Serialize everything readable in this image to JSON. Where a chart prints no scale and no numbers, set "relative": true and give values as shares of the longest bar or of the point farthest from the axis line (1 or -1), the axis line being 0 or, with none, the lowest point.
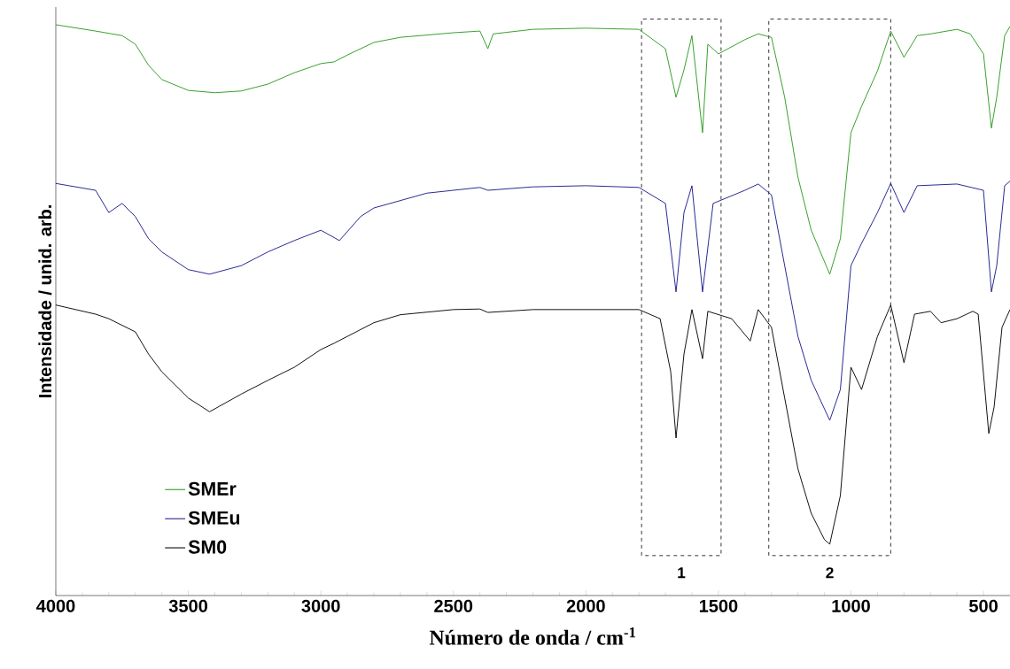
{
  "chart_data": {
    "type": "line",
    "relative": true,
    "xlabel": "Número de onda / cm$^{-1}$",
    "ylabel": "Intensidade / unid. arb.",
    "xlim": [
      4000,
      400
    ],
    "xticks": [
      4000,
      3500,
      3000,
      2500,
      2000,
      1500,
      1000,
      500
    ],
    "legend": "bottom left",
    "grid": false,
    "marker": "none",
    "line_style": "solid",
    "bands": [
      {
        "axis": "x",
        "from": 1790,
        "to": 1490,
        "label": "1"
      },
      {
        "axis": "x",
        "from": 1310,
        "to": 850,
        "label": "2"
      }
    ],
    "series": [
      {
        "name": "SMEr",
        "color": "#2a9a1e",
        "x": [
          4000,
          3850,
          3750,
          3700,
          3650,
          3600,
          3500,
          3400,
          3300,
          3200,
          3100,
          3000,
          2950,
          2900,
          2800,
          2700,
          2500,
          2400,
          2370,
          2350,
          2200,
          2000,
          1800,
          1700,
          1660,
          1630,
          1600,
          1560,
          1540,
          1500,
          1400,
          1350,
          1300,
          1250,
          1200,
          1150,
          1080,
          1040,
          1000,
          960,
          900,
          850,
          800,
          750,
          700,
          600,
          550,
          500,
          470,
          450,
          420,
          400
        ],
        "values": [
          1.0,
          0.989,
          0.981,
          0.966,
          0.929,
          0.904,
          0.885,
          0.881,
          0.884,
          0.896,
          0.916,
          0.932,
          0.935,
          0.947,
          0.969,
          0.978,
          0.986,
          0.989,
          0.958,
          0.984,
          0.992,
          0.994,
          0.992,
          0.958,
          0.873,
          0.921,
          0.981,
          0.811,
          0.966,
          0.949,
          0.974,
          0.984,
          0.978,
          0.873,
          0.733,
          0.64,
          0.563,
          0.625,
          0.811,
          0.857,
          0.919,
          0.989,
          0.943,
          0.981,
          0.984,
          0.992,
          0.984,
          0.949,
          0.819,
          0.873,
          0.981,
          0.997
        ]
      },
      {
        "name": "SMEu",
        "color": "#1a1a8c",
        "x": [
          4000,
          3850,
          3800,
          3750,
          3700,
          3650,
          3600,
          3500,
          3420,
          3300,
          3200,
          3100,
          3000,
          2930,
          2850,
          2800,
          2600,
          2400,
          2370,
          2200,
          2000,
          1800,
          1700,
          1660,
          1630,
          1600,
          1560,
          1520,
          1400,
          1350,
          1300,
          1250,
          1200,
          1150,
          1080,
          1040,
          1000,
          960,
          900,
          850,
          800,
          750,
          600,
          500,
          470,
          450,
          420,
          400
        ],
        "values": [
          0.722,
          0.71,
          0.671,
          0.687,
          0.664,
          0.625,
          0.602,
          0.571,
          0.563,
          0.578,
          0.602,
          0.622,
          0.64,
          0.622,
          0.664,
          0.679,
          0.705,
          0.715,
          0.71,
          0.716,
          0.718,
          0.715,
          0.687,
          0.532,
          0.671,
          0.718,
          0.532,
          0.687,
          0.71,
          0.721,
          0.702,
          0.578,
          0.454,
          0.377,
          0.307,
          0.361,
          0.578,
          0.617,
          0.671,
          0.722,
          0.671,
          0.718,
          0.721,
          0.71,
          0.532,
          0.578,
          0.718,
          0.726
        ]
      },
      {
        "name": "SM0",
        "color": "#000000",
        "x": [
          4000,
          3850,
          3800,
          3700,
          3650,
          3600,
          3500,
          3420,
          3300,
          3200,
          3100,
          3000,
          2950,
          2900,
          2800,
          2700,
          2500,
          2400,
          2370,
          2200,
          2000,
          1800,
          1720,
          1680,
          1660,
          1630,
          1600,
          1560,
          1540,
          1450,
          1380,
          1350,
          1300,
          1250,
          1200,
          1150,
          1100,
          1080,
          1040,
          1000,
          960,
          900,
          850,
          800,
          760,
          700,
          660,
          600,
          540,
          520,
          480,
          460,
          430,
          400
        ],
        "values": [
          0.509,
          0.493,
          0.485,
          0.462,
          0.423,
          0.392,
          0.346,
          0.322,
          0.353,
          0.377,
          0.4,
          0.431,
          0.442,
          0.454,
          0.478,
          0.492,
          0.501,
          0.502,
          0.496,
          0.501,
          0.501,
          0.501,
          0.485,
          0.392,
          0.276,
          0.423,
          0.501,
          0.415,
          0.498,
          0.485,
          0.446,
          0.501,
          0.47,
          0.346,
          0.222,
          0.144,
          0.098,
          0.09,
          0.175,
          0.4,
          0.361,
          0.454,
          0.509,
          0.408,
          0.493,
          0.498,
          0.478,
          0.485,
          0.498,
          0.493,
          0.284,
          0.33,
          0.47,
          0.501
        ]
      }
    ]
  }
}
